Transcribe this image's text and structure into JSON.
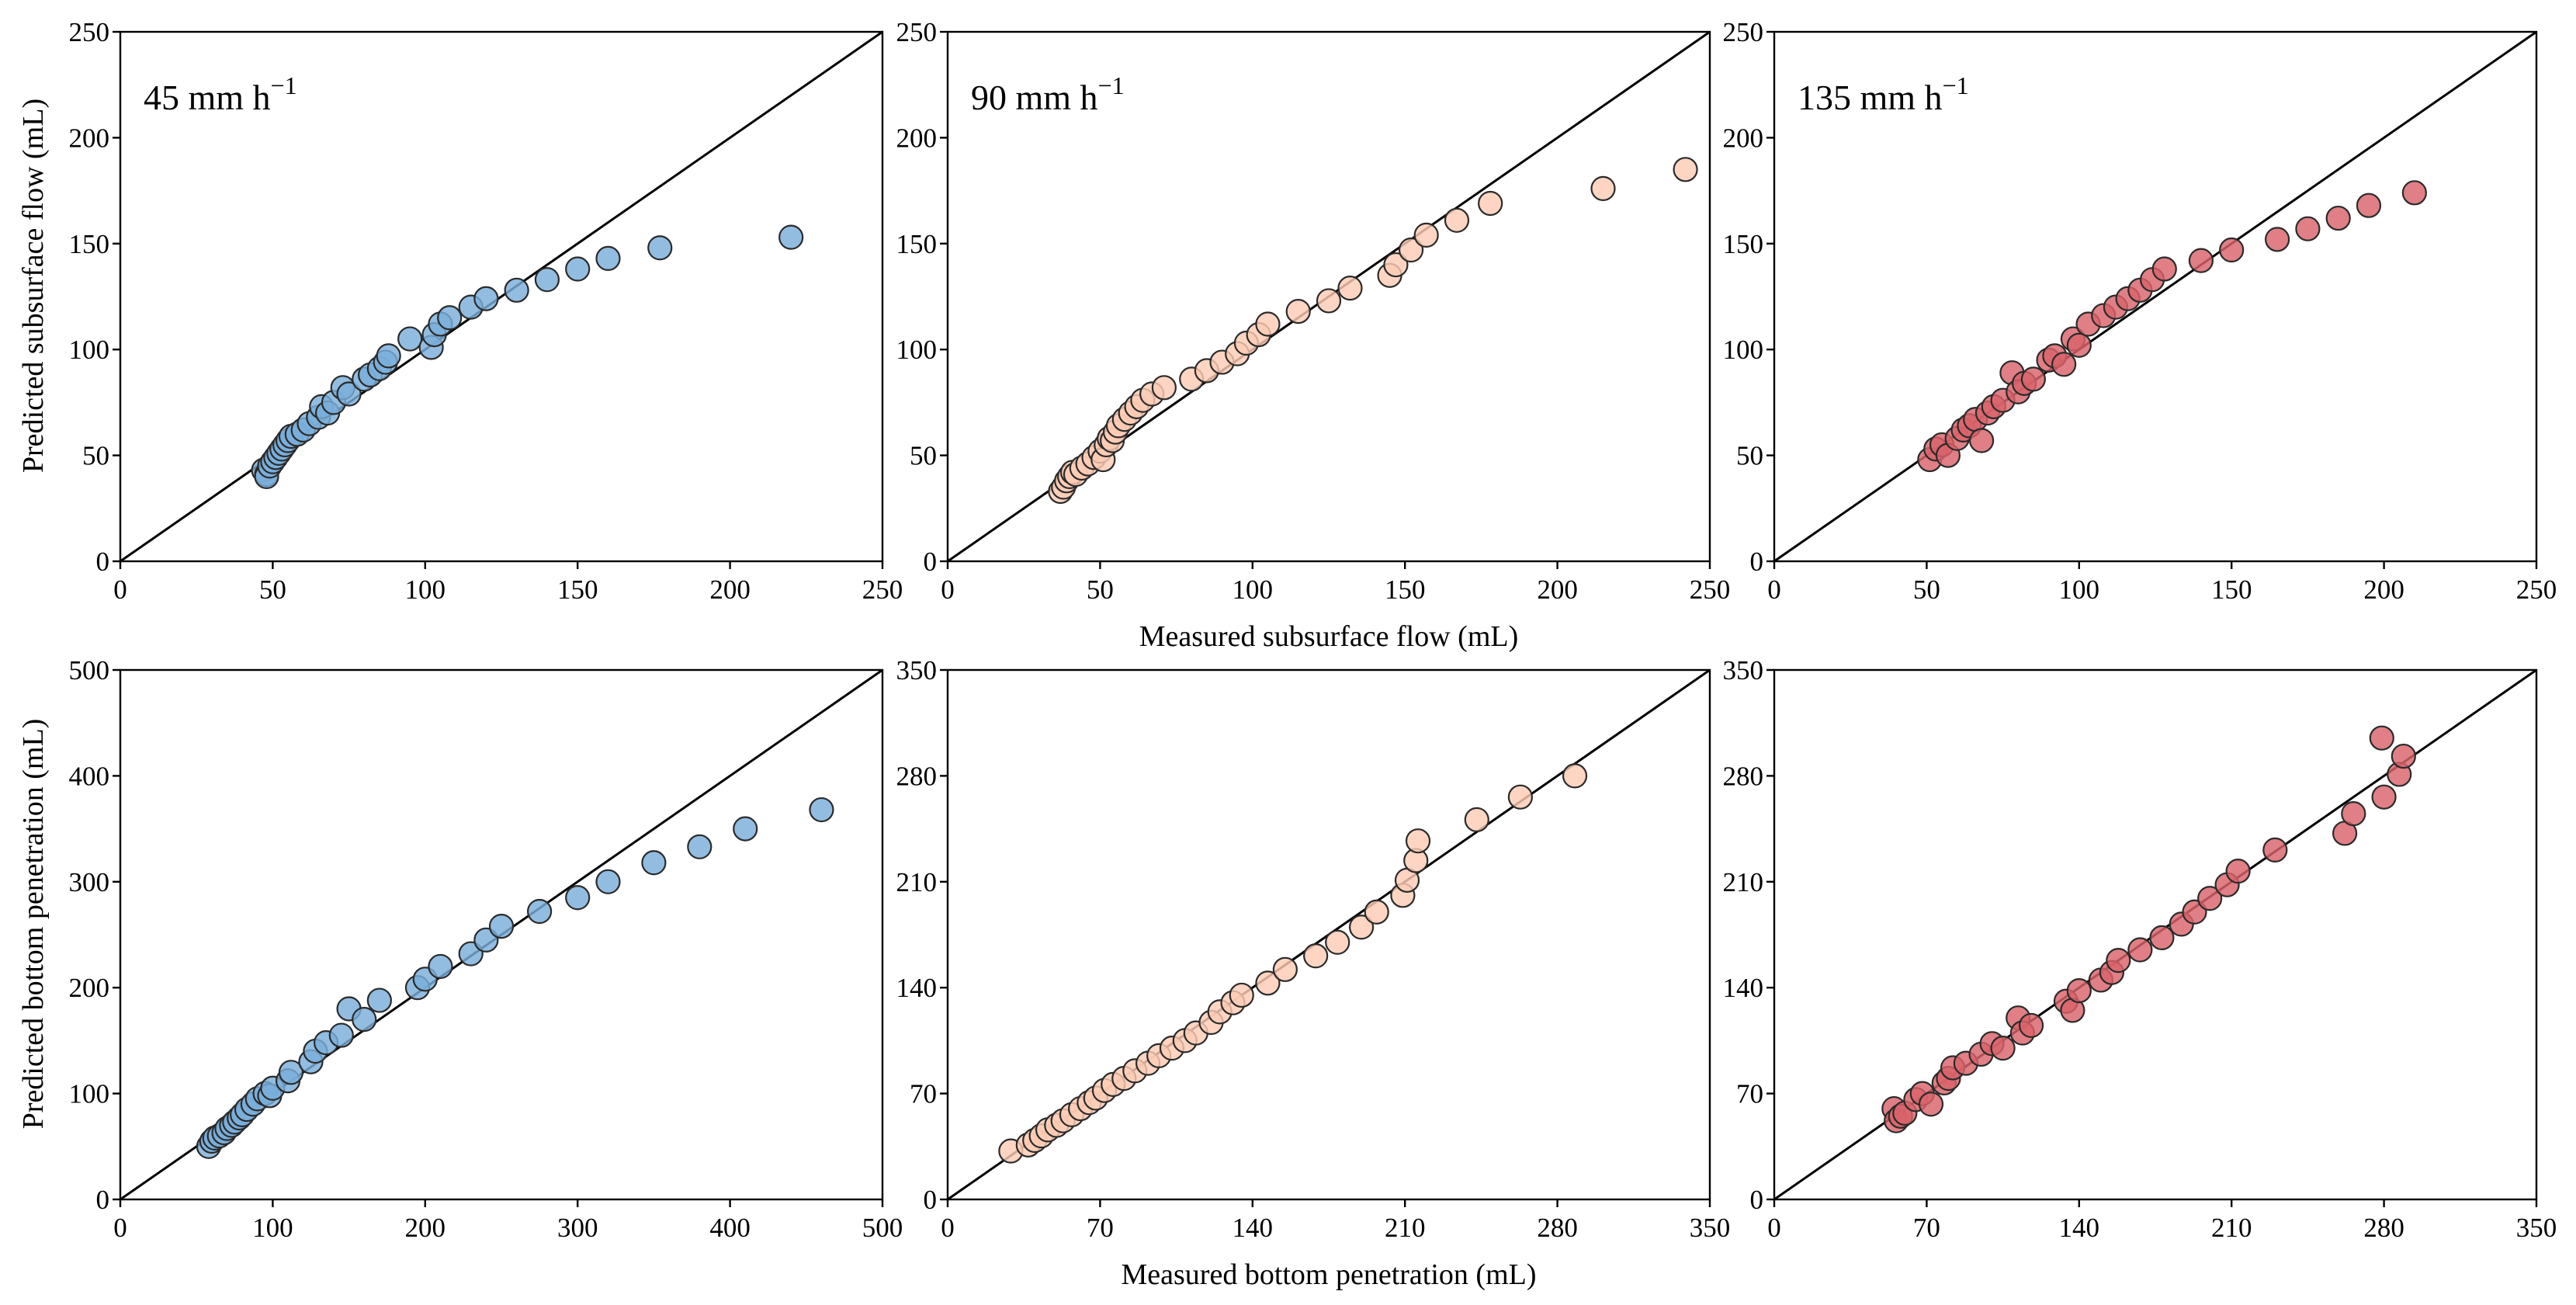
{
  "labels": {
    "y_top": "Predicted subsurface flow (mL)",
    "y_bottom": "Predicted bottom penetration (mL)",
    "x_top": "Measured subsurface flow (mL)",
    "x_bottom": "Measured bottom penetration (mL)"
  },
  "chart_data": [
    {
      "type": "scatter",
      "panel": "top-left",
      "title": "45 mm h",
      "title_sup": "−1",
      "color": "#7AAEDB",
      "edge": "#2b2b2b",
      "xlim": [
        0,
        250
      ],
      "ylim": [
        0,
        250
      ],
      "xticks": [
        "0",
        "50",
        "100",
        "150",
        "200",
        "250"
      ],
      "yticks": [
        "0",
        "50",
        "100",
        "150",
        "200",
        "250"
      ],
      "identity_line": true,
      "x": [
        47,
        48,
        48,
        49,
        50,
        51,
        52,
        53,
        54,
        55,
        56,
        58,
        60,
        62,
        65,
        66,
        68,
        70,
        73,
        75,
        80,
        82,
        85,
        87,
        88,
        95,
        102,
        103,
        105,
        108,
        115,
        120,
        130,
        140,
        150,
        160,
        177,
        220
      ],
      "y": [
        43,
        41,
        40,
        45,
        47,
        49,
        51,
        53,
        55,
        57,
        59,
        60,
        62,
        65,
        68,
        73,
        70,
        75,
        82,
        79,
        86,
        88,
        91,
        94,
        97,
        105,
        101,
        107,
        112,
        115,
        120,
        124,
        128,
        133,
        138,
        143,
        148,
        153
      ]
    },
    {
      "type": "scatter",
      "panel": "top-middle",
      "title": "90 mm h",
      "title_sup": "−1",
      "color": "#FCCCB4",
      "edge": "#2b2b2b",
      "xlim": [
        0,
        250
      ],
      "ylim": [
        0,
        250
      ],
      "xticks": [
        "0",
        "50",
        "100",
        "150",
        "200",
        "250"
      ],
      "yticks": [
        "0",
        "50",
        "100",
        "150",
        "200",
        "250"
      ],
      "identity_line": true,
      "x": [
        37,
        38,
        39,
        40,
        41,
        42,
        44,
        46,
        48,
        50,
        51,
        52,
        53,
        54,
        55,
        56,
        58,
        60,
        62,
        64,
        67,
        71,
        80,
        85,
        90,
        95,
        98,
        102,
        105,
        115,
        125,
        132,
        145,
        147,
        152,
        157,
        167,
        178,
        215,
        242
      ],
      "y": [
        33,
        35,
        38,
        40,
        42,
        41,
        44,
        46,
        49,
        52,
        48,
        55,
        58,
        57,
        61,
        64,
        67,
        70,
        73,
        76,
        79,
        82,
        86,
        90,
        94,
        98,
        103,
        107,
        112,
        118,
        123,
        129,
        135,
        140,
        147,
        154,
        161,
        169,
        176,
        185
      ]
    },
    {
      "type": "scatter",
      "panel": "top-right",
      "title": "135 mm h",
      "title_sup": "−1",
      "color": "#D9636A",
      "edge": "#2b2b2b",
      "xlim": [
        0,
        250
      ],
      "ylim": [
        0,
        250
      ],
      "xticks": [
        "0",
        "50",
        "100",
        "150",
        "200",
        "250"
      ],
      "yticks": [
        "0",
        "50",
        "100",
        "150",
        "200",
        "250"
      ],
      "identity_line": true,
      "x": [
        51,
        53,
        55,
        57,
        60,
        62,
        64,
        66,
        68,
        70,
        72,
        75,
        78,
        80,
        82,
        85,
        90,
        92,
        95,
        98,
        100,
        103,
        108,
        112,
        116,
        120,
        124,
        128,
        140,
        150,
        165,
        175,
        185,
        195,
        210
      ],
      "y": [
        48,
        53,
        55,
        50,
        58,
        62,
        64,
        67,
        57,
        70,
        73,
        76,
        89,
        80,
        84,
        86,
        95,
        97,
        93,
        105,
        102,
        112,
        116,
        120,
        124,
        128,
        133,
        138,
        142,
        147,
        152,
        157,
        162,
        168,
        174
      ]
    },
    {
      "type": "scatter",
      "panel": "bottom-left",
      "title": "",
      "color": "#7AAEDB",
      "edge": "#2b2b2b",
      "xlim": [
        0,
        500
      ],
      "ylim": [
        0,
        500
      ],
      "xticks": [
        "0",
        "100",
        "200",
        "300",
        "400",
        "500"
      ],
      "yticks": [
        "0",
        "100",
        "200",
        "300",
        "400",
        "500"
      ],
      "identity_line": true,
      "x": [
        58,
        60,
        62,
        65,
        68,
        70,
        73,
        75,
        78,
        80,
        83,
        87,
        90,
        95,
        98,
        100,
        110,
        112,
        125,
        128,
        135,
        145,
        150,
        160,
        170,
        195,
        200,
        210,
        230,
        240,
        250,
        275,
        300,
        320,
        350,
        380,
        410,
        460
      ],
      "y": [
        50,
        55,
        58,
        60,
        63,
        67,
        70,
        73,
        77,
        80,
        85,
        90,
        95,
        100,
        98,
        105,
        112,
        120,
        130,
        140,
        148,
        155,
        180,
        170,
        188,
        200,
        208,
        220,
        232,
        245,
        258,
        272,
        285,
        300,
        318,
        333,
        350,
        368
      ]
    },
    {
      "type": "scatter",
      "panel": "bottom-middle",
      "title": "",
      "color": "#FCCCB4",
      "edge": "#2b2b2b",
      "xlim": [
        0,
        350
      ],
      "ylim": [
        0,
        350
      ],
      "xticks": [
        "0",
        "70",
        "140",
        "210",
        "280",
        "350"
      ],
      "yticks": [
        "0",
        "70",
        "140",
        "210",
        "280",
        "350"
      ],
      "identity_line": true,
      "x": [
        29,
        37,
        40,
        43,
        46,
        50,
        53,
        57,
        61,
        65,
        68,
        72,
        76,
        81,
        86,
        92,
        97,
        103,
        109,
        114,
        121,
        125,
        131,
        135,
        147,
        155,
        169,
        179,
        190,
        197,
        209,
        211,
        215,
        216,
        243,
        263,
        288
      ],
      "y": [
        32,
        36,
        39,
        42,
        46,
        49,
        52,
        56,
        60,
        64,
        67,
        72,
        76,
        80,
        85,
        90,
        95,
        100,
        105,
        110,
        117,
        124,
        130,
        135,
        143,
        152,
        161,
        170,
        180,
        190,
        201,
        211,
        224,
        237,
        251,
        266,
        280
      ]
    },
    {
      "type": "scatter",
      "panel": "bottom-right",
      "title": "",
      "color": "#D9636A",
      "edge": "#2b2b2b",
      "xlim": [
        0,
        350
      ],
      "ylim": [
        0,
        350
      ],
      "xticks": [
        "0",
        "70",
        "140",
        "210",
        "280",
        "350"
      ],
      "yticks": [
        "0",
        "70",
        "140",
        "210",
        "280",
        "350"
      ],
      "identity_line": true,
      "x": [
        55,
        56,
        58,
        60,
        65,
        68,
        72,
        78,
        80,
        82,
        88,
        95,
        100,
        105,
        112,
        114,
        118,
        134,
        137,
        140,
        150,
        155,
        158,
        168,
        178,
        187,
        193,
        200,
        208,
        213,
        230,
        262,
        266,
        279,
        280,
        287,
        289
      ],
      "y": [
        60,
        52,
        55,
        57,
        66,
        70,
        63,
        77,
        80,
        87,
        90,
        96,
        103,
        100,
        120,
        110,
        115,
        131,
        125,
        138,
        145,
        150,
        158,
        165,
        173,
        182,
        190,
        199,
        208,
        217,
        231,
        242,
        255,
        305,
        266,
        281,
        293
      ]
    }
  ]
}
